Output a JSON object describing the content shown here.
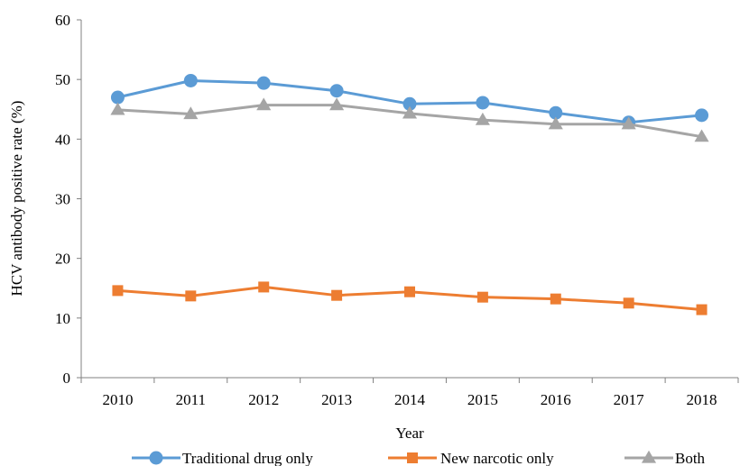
{
  "chart_data": {
    "type": "line",
    "title": "",
    "xlabel": "Year",
    "ylabel": "HCV antibody positive rate (%)",
    "categories": [
      "2010",
      "2011",
      "2012",
      "2013",
      "2014",
      "2015",
      "2016",
      "2017",
      "2018"
    ],
    "ylim": [
      0,
      60
    ],
    "yticks": [
      "0",
      "10",
      "20",
      "30",
      "40",
      "50",
      "60"
    ],
    "grid": false,
    "legend_position": "bottom",
    "series": [
      {
        "name": "Traditional drug only",
        "marker": "circle",
        "color": "#5B9BD5",
        "values": [
          47.0,
          49.8,
          49.4,
          48.1,
          45.9,
          46.1,
          44.4,
          42.8,
          44.0
        ]
      },
      {
        "name": "New narcotic only",
        "marker": "square",
        "color": "#ED7D31",
        "values": [
          14.6,
          13.7,
          15.2,
          13.8,
          14.4,
          13.5,
          13.2,
          12.5,
          11.4
        ]
      },
      {
        "name": "Both",
        "marker": "triangle",
        "color": "#A5A5A5",
        "values": [
          44.9,
          44.2,
          45.7,
          45.7,
          44.3,
          43.2,
          42.5,
          42.5,
          40.4
        ]
      }
    ]
  }
}
